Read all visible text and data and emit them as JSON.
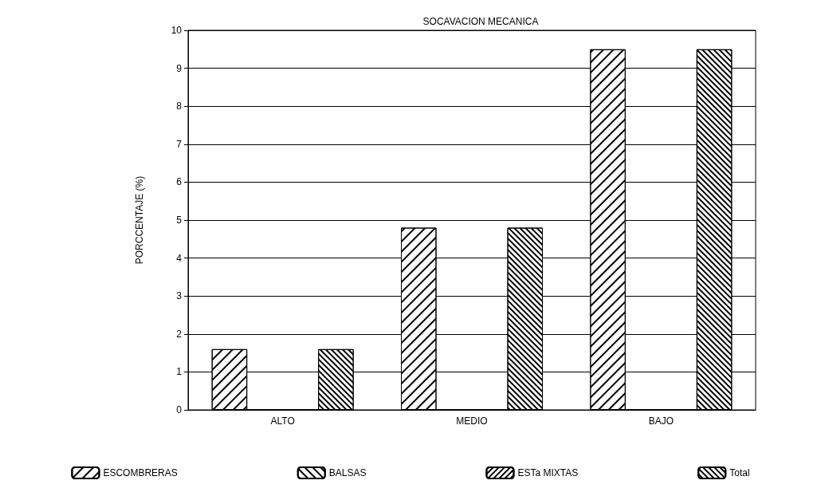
{
  "chart_data": {
    "type": "bar",
    "title": "SOCAVACION MECANICA",
    "ylabel": "PORCCENTAJE (%)",
    "categories": [
      "ALTO",
      "MEDIO",
      "BAJO"
    ],
    "series": [
      {
        "name": "ESCOMBRERAS",
        "color": "#000000",
        "values": [
          1.6,
          4.8,
          9.5
        ]
      },
      {
        "name": "BALSAS",
        "color": "#000000",
        "values": [
          0,
          0,
          0
        ]
      },
      {
        "name": "ESTa MIXTAS",
        "color": "#000000",
        "values": [
          0,
          0,
          0
        ]
      },
      {
        "name": "Total",
        "color": "#000000",
        "values": [
          1.6,
          4.8,
          9.5
        ]
      }
    ],
    "ylim": [
      0,
      10
    ],
    "yticks": [
      0,
      1,
      2,
      3,
      4,
      5,
      6,
      7,
      8,
      9,
      10
    ],
    "grid": "y",
    "legend": "bottom"
  }
}
